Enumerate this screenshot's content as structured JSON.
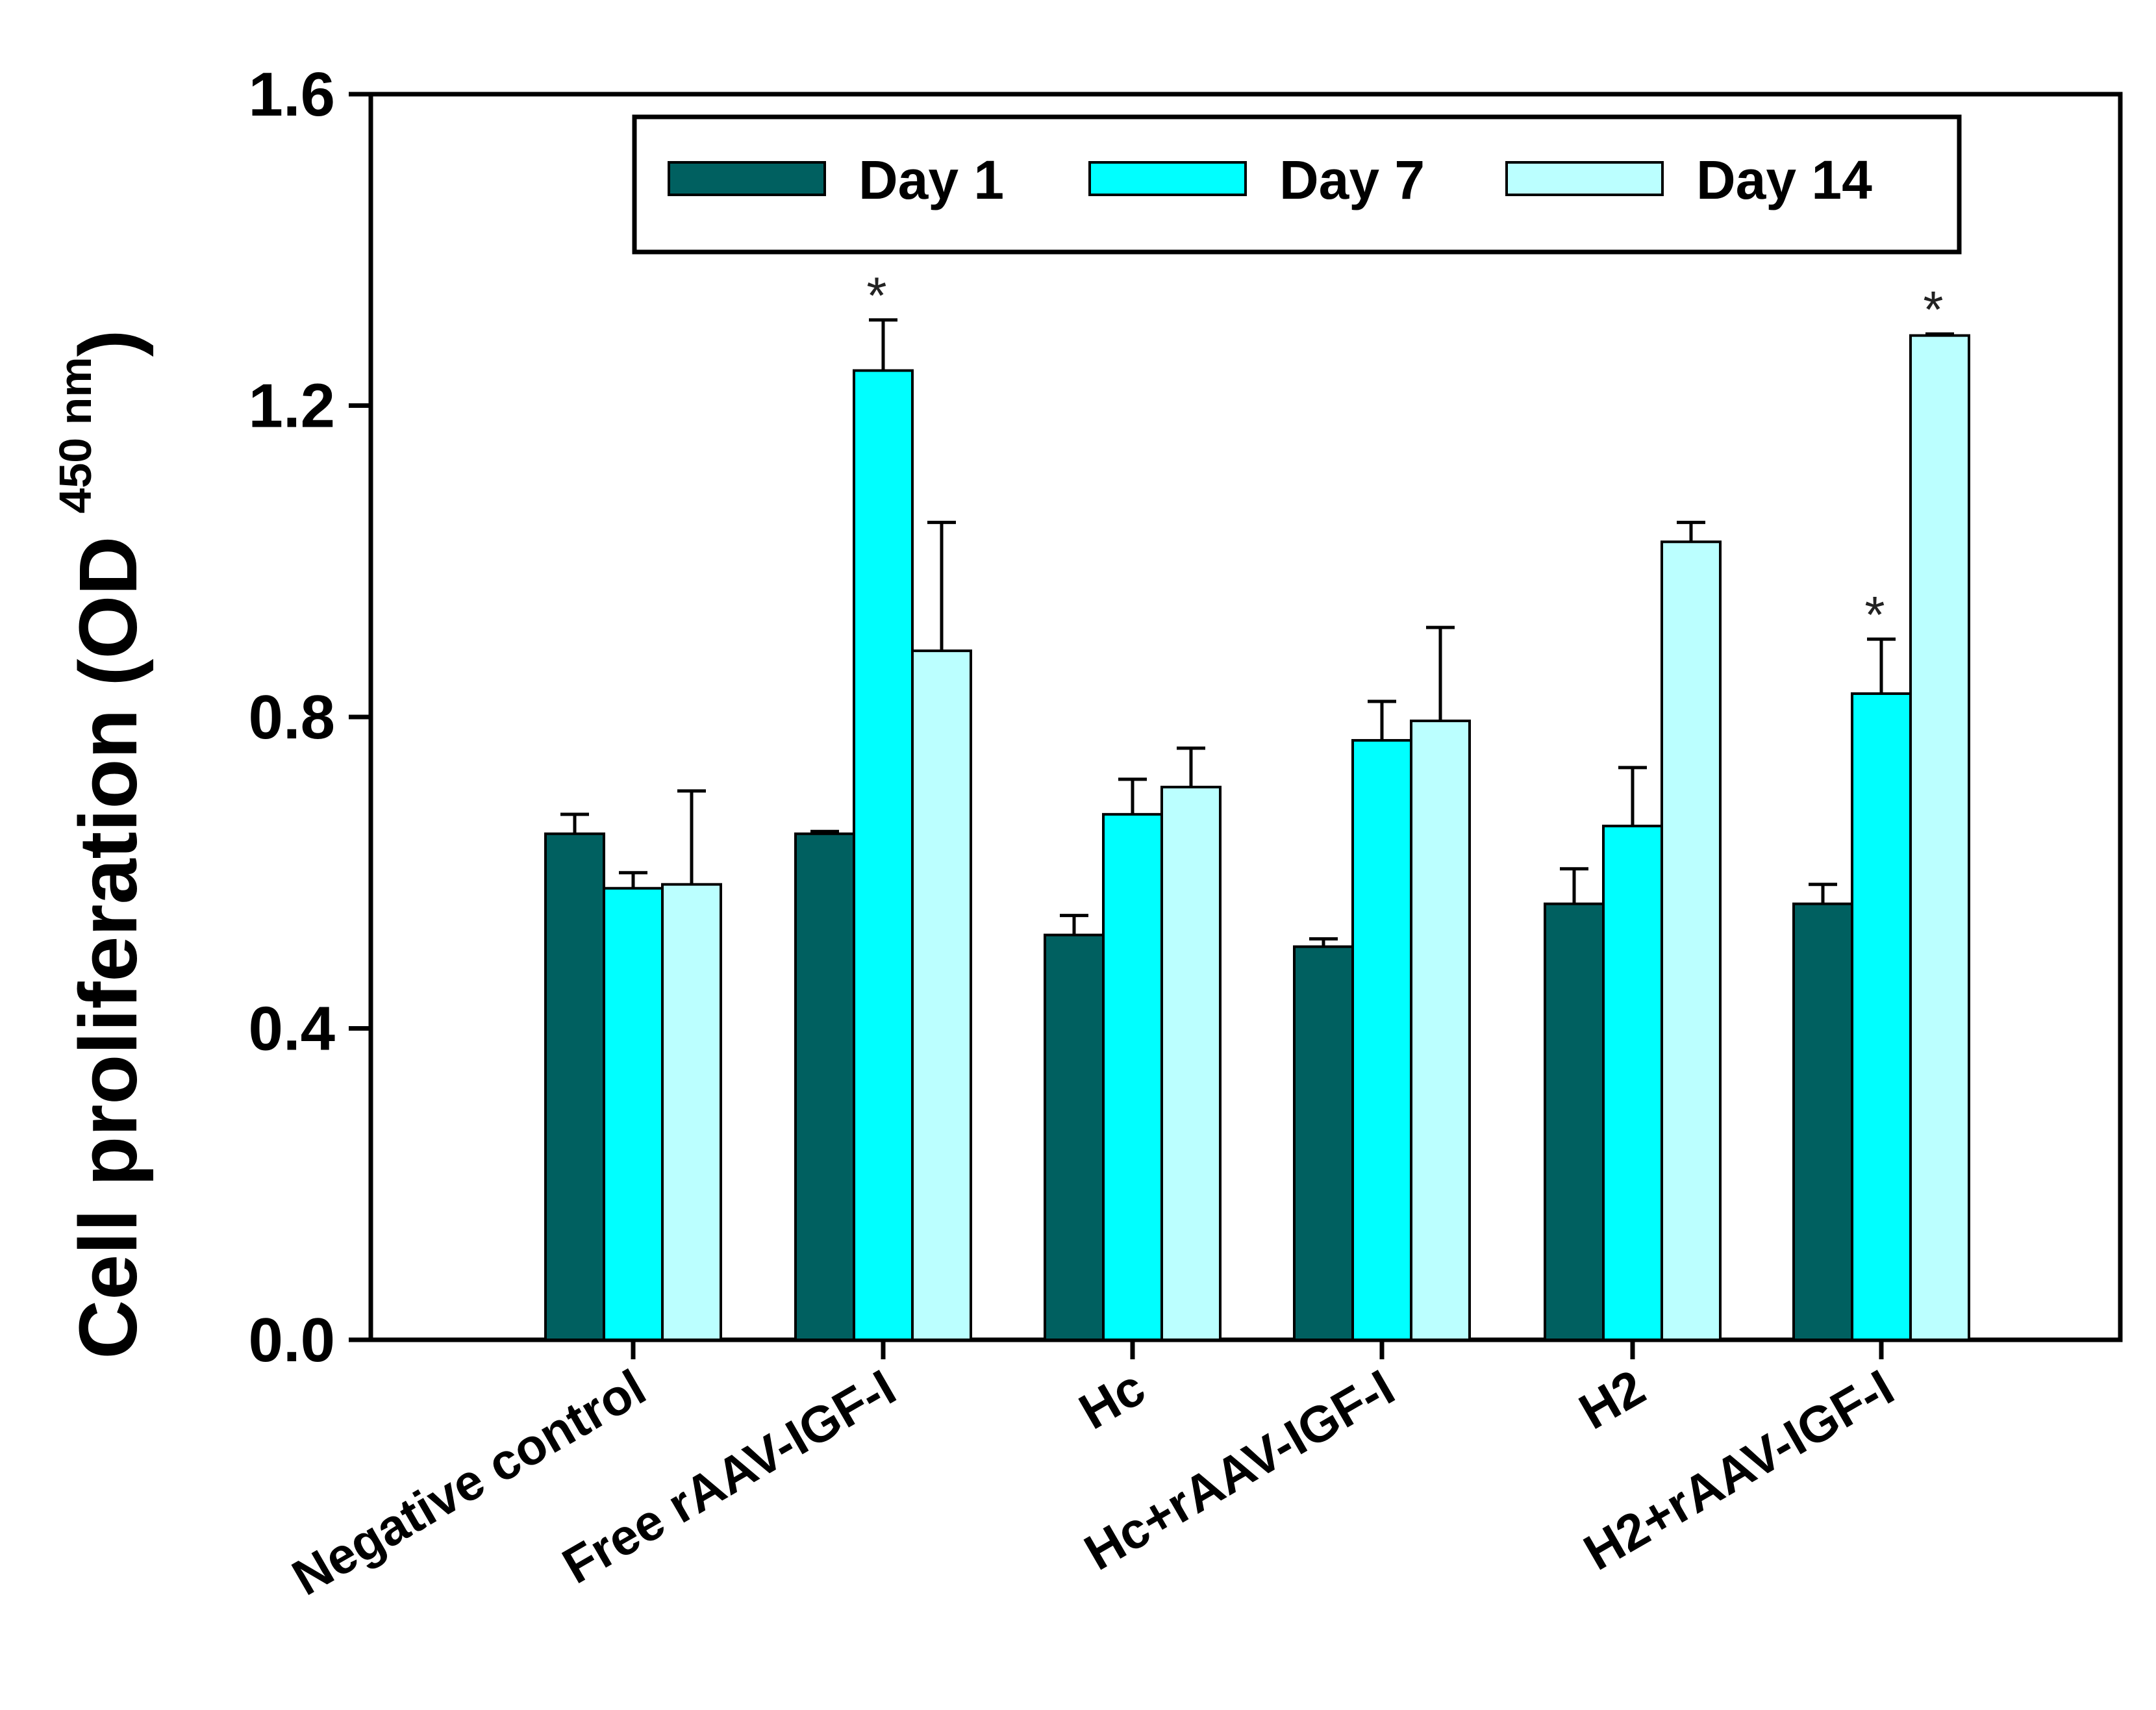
{
  "chart_data": {
    "type": "bar",
    "ylabel": {
      "main": "Cell proliferation (OD",
      "sup": "450 nm",
      "close": ")"
    },
    "ylim": [
      0,
      1.6
    ],
    "yticks": [
      "0.0",
      "0.4",
      "0.8",
      "1.2",
      "1.6"
    ],
    "categories": [
      "Negative control",
      "Free rAAV-IGF-I",
      "Hc",
      "Hc+rAAV-IGF-I",
      "H2",
      "H2+rAAV-IGF-I"
    ],
    "legend_position": "top-right",
    "series": [
      {
        "name": "Day 1",
        "color": "#006060",
        "values": [
          0.65,
          0.65,
          0.52,
          0.505,
          0.56,
          0.56
        ],
        "errors": [
          0.025,
          0.003,
          0.025,
          0.01,
          0.045,
          0.025
        ],
        "sig": [
          false,
          false,
          false,
          false,
          false,
          false
        ]
      },
      {
        "name": "Day 7",
        "color": "#00FFFF",
        "values": [
          0.58,
          1.245,
          0.675,
          0.77,
          0.66,
          0.83
        ],
        "errors": [
          0.02,
          0.065,
          0.045,
          0.05,
          0.075,
          0.07
        ],
        "sig": [
          false,
          true,
          false,
          false,
          false,
          true
        ]
      },
      {
        "name": "Day 14",
        "color": "#BBFFFF",
        "values": [
          0.585,
          0.885,
          0.71,
          0.795,
          1.025,
          1.29
        ],
        "errors": [
          0.12,
          0.165,
          0.05,
          0.12,
          0.025,
          0.002
        ],
        "sig": [
          false,
          false,
          false,
          false,
          false,
          true
        ]
      }
    ],
    "significance_marker": "*"
  }
}
